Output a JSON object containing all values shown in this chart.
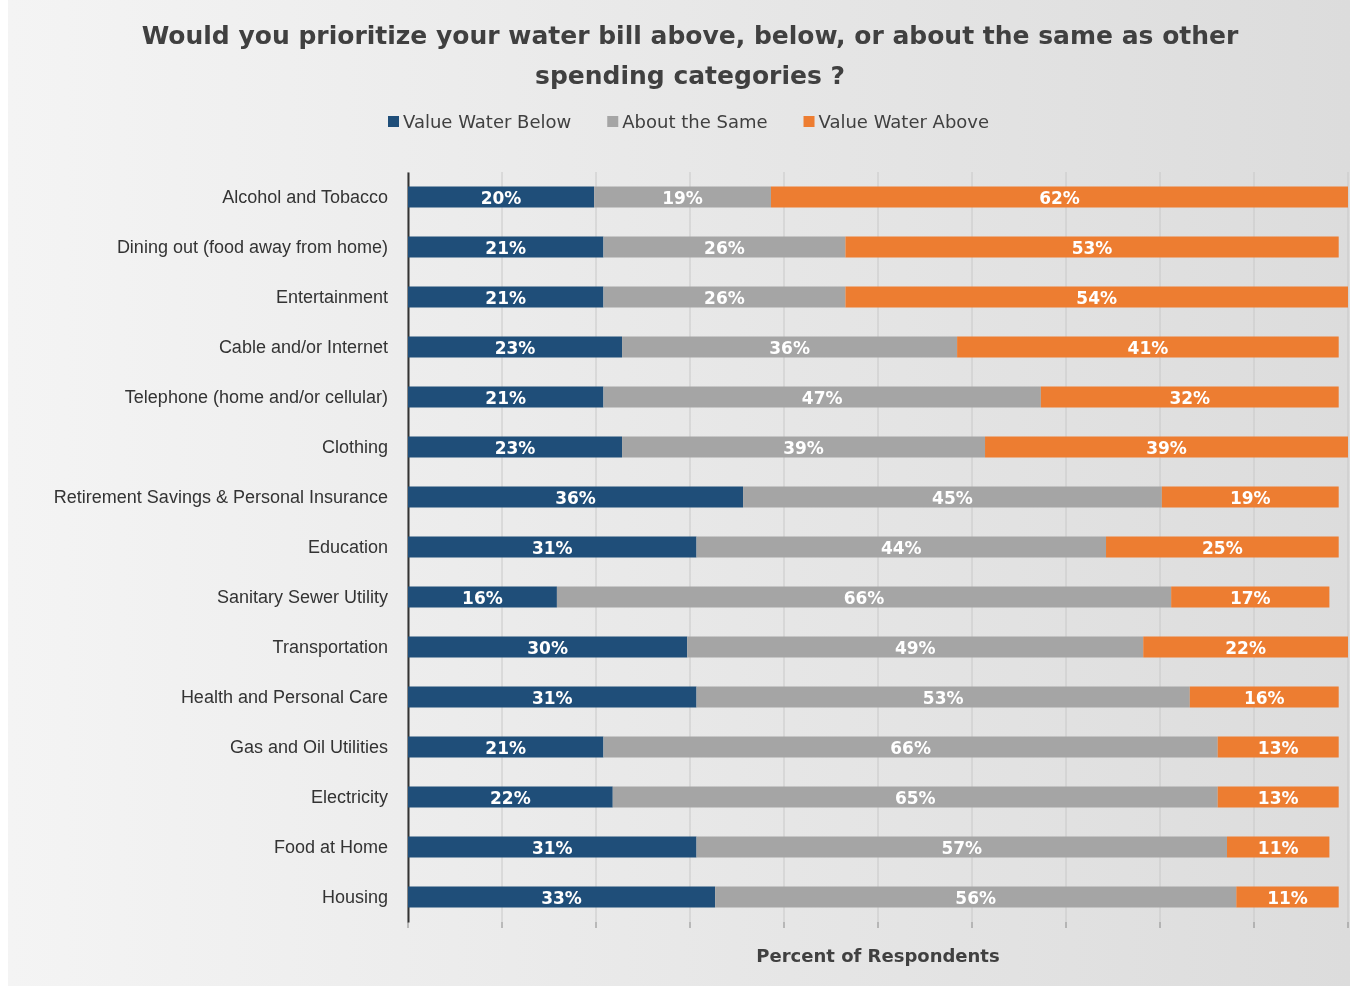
{
  "chart_data": {
    "type": "bar",
    "title": "Would you prioritize your water bill above, below, or about the same as other spending categories ?",
    "xlabel": "Percent of Respondents",
    "orientation": "horizontal",
    "stacked": true,
    "grid": "x",
    "legend": "top",
    "tick_labels": "y",
    "categories": [
      "Alcohol and Tobacco",
      "Dining out (food away from home)",
      "Entertainment",
      "Cable and/or Internet",
      "Telephone (home and/or cellular)",
      "Clothing",
      "Retirement Savings & Personal Insurance",
      "Education",
      "Sanitary Sewer Utility",
      "Transportation",
      "Health and Personal Care",
      "Gas and Oil Utilities",
      "Electricity",
      "Food at Home",
      "Housing"
    ],
    "series": [
      {
        "name": "Value Water Below",
        "color": "#1f4e79",
        "values": [
          20,
          21,
          21,
          23,
          21,
          23,
          36,
          31,
          16,
          30,
          31,
          21,
          22,
          31,
          33
        ],
        "value_labels": [
          "20%",
          "21%",
          "21%",
          "23%",
          "21%",
          "23%",
          "36%",
          "31%",
          "16%",
          "30%",
          "31%",
          "21%",
          "22%",
          "31%",
          "33%"
        ]
      },
      {
        "name": "About the Same",
        "color": "#a5a5a5",
        "values": [
          19,
          26,
          26,
          36,
          47,
          39,
          45,
          44,
          66,
          49,
          53,
          66,
          65,
          57,
          56
        ],
        "value_labels": [
          "19%",
          "26%",
          "26%",
          "36%",
          "47%",
          "39%",
          "45%",
          "44%",
          "66%",
          "49%",
          "53%",
          "66%",
          "65%",
          "57%",
          "56%"
        ]
      },
      {
        "name": "Value Water Above",
        "color": "#ed7d31",
        "values": [
          62,
          53,
          54,
          41,
          32,
          39,
          19,
          25,
          17,
          22,
          16,
          13,
          13,
          11,
          11
        ],
        "value_labels": [
          "62%",
          "53%",
          "54%",
          "41%",
          "32%",
          "39%",
          "19%",
          "25%",
          "17%",
          "22%",
          "16%",
          "13%",
          "13%",
          "11%",
          "11%"
        ]
      }
    ]
  }
}
